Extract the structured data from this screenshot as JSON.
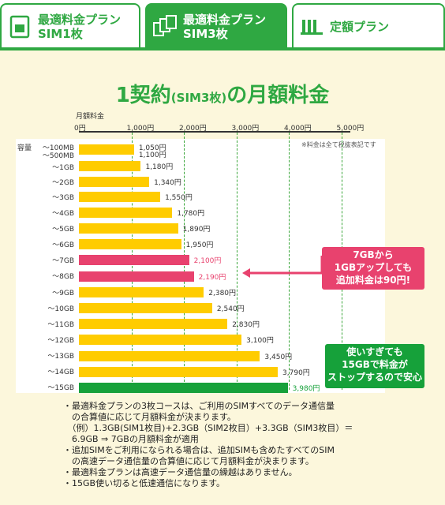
{
  "tabs": [
    {
      "line1": "最適料金プラン",
      "line2": "SIM1枚",
      "icon": "sim-single-icon"
    },
    {
      "line1": "最適料金プラン",
      "line2": "SIM3枚",
      "icon": "sim-triple-icon"
    },
    {
      "line1": "定額プラン",
      "line2": "",
      "icon": "flat-plan-icon"
    }
  ],
  "title": {
    "main_a": "1契約",
    "main_b": "(SIM3枚)",
    "main_c": "の月額料金"
  },
  "note": "※料金は全て税抜表記です",
  "capacity_label": "容量",
  "colors": {
    "green": "#2fa842",
    "yellow": "#ffcc00",
    "pink": "#e8426e",
    "dark_green": "#16a13a"
  },
  "chart_data": {
    "type": "bar",
    "orientation": "horizontal",
    "xlabel": "月額料金",
    "x_ticks": [
      "0円",
      "1,000円",
      "2,000円",
      "3,000円",
      "4,000円",
      "5,000円"
    ],
    "xlim": [
      0,
      5000
    ],
    "categories": [
      "～100MB",
      "～500MB",
      "～1GB",
      "～2GB",
      "～3GB",
      "～4GB",
      "～5GB",
      "～6GB",
      "～7GB",
      "～8GB",
      "～9GB",
      "～10GB",
      "～11GB",
      "～12GB",
      "～13GB",
      "～14GB",
      "～15GB"
    ],
    "values": [
      1050,
      1100,
      1180,
      1340,
      1550,
      1780,
      1890,
      1950,
      2100,
      2190,
      2380,
      2540,
      2830,
      3100,
      3450,
      3790,
      3980
    ],
    "labels": [
      "1,050円",
      "1,100円",
      "1,180円",
      "1,340円",
      "1,550円",
      "1,780円",
      "1,890円",
      "1,950円",
      "2,100円",
      "2,190円",
      "2,380円",
      "2,540円",
      "2,830円",
      "3,100円",
      "3,450円",
      "3,790円",
      "3,980円"
    ],
    "highlight": {
      "pink": [
        "～7GB",
        "～8GB"
      ],
      "green": [
        "～15GB"
      ]
    }
  },
  "callouts": {
    "pink": [
      "7GBから",
      "1GBアップしても",
      "追加料金は90円!"
    ],
    "green": [
      "使いすぎても",
      "15GBで料金が",
      "ストップするので安心"
    ]
  },
  "notes": [
    "・最適料金プランの3枚コースは、ご利用のSIMすべてのデータ通信量",
    "　の合算値に応じて月額料金が決まります。",
    "　（例）1.3GB(SIM1枚目)+2.3GB（SIM2枚目）+3.3GB（SIM3枚目）＝",
    "　6.9GB ⇒ 7GBの月額料金が適用",
    "・追加SIMをご利用になられる場合は、追加SIMも含めたすべてのSIM",
    "　の高速データ通信量の合算値に応じて月額料金が決まります。",
    "・最適料金プランは高速データ通信量の繰越はありません。",
    "・15GB使い切ると低速通信になります。"
  ]
}
